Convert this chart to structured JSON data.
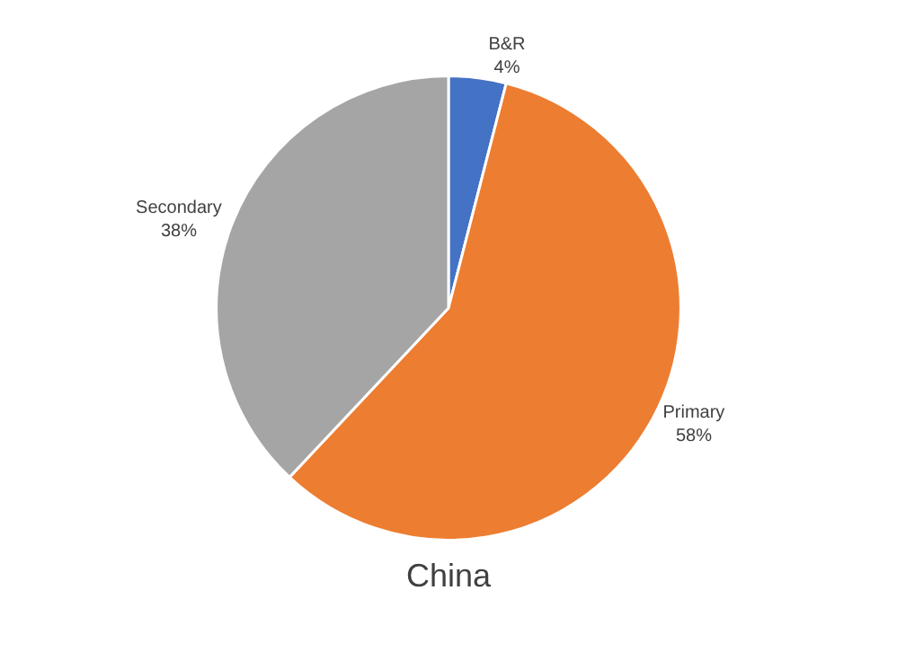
{
  "chart_data": {
    "type": "pie",
    "title": "China",
    "categories": [
      "B&R",
      "Primary",
      "Secondary"
    ],
    "values": [
      4,
      58,
      38
    ],
    "value_labels": [
      "4%",
      "58%",
      "38%"
    ],
    "colors": [
      "#4472c4",
      "#ed7d31",
      "#a5a5a5"
    ],
    "legend": false
  }
}
